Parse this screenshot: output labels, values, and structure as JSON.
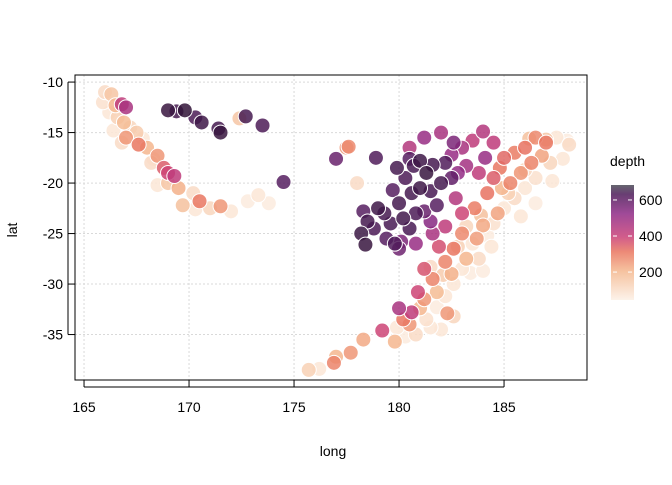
{
  "chart_data": {
    "type": "scatter",
    "title": "",
    "xlabel": "long",
    "ylabel": "lat",
    "xlim": [
      164.57,
      188.95
    ],
    "ylim": [
      -39.5,
      -9.3
    ],
    "xticks": [
      "165",
      "170",
      "175",
      "180",
      "185"
    ],
    "yticks": [
      "-10",
      "-15",
      "-20",
      "-25",
      "-30",
      "-35"
    ],
    "grid": true,
    "legend": {
      "title": "depth",
      "ticks": [
        "200",
        "400",
        "600"
      ],
      "range": [
        45,
        683
      ],
      "placement": "right"
    },
    "colors": [
      "#fcf0e6",
      "#f4b88f",
      "#e9755f",
      "#c93f77",
      "#8f2a86",
      "#4e1c5a",
      "#2a1230"
    ],
    "points": [
      [
        166,
        -11,
        80
      ],
      [
        166.3,
        -11.2,
        120
      ],
      [
        165.9,
        -12,
        70
      ],
      [
        166.5,
        -12.3,
        150
      ],
      [
        166.2,
        -13,
        60
      ],
      [
        166.8,
        -12.2,
        380
      ],
      [
        167,
        -12.5,
        420
      ],
      [
        166.6,
        -13.5,
        100
      ],
      [
        166.9,
        -14,
        140
      ],
      [
        167.2,
        -14.5,
        90
      ],
      [
        166.4,
        -14.8,
        60
      ],
      [
        167,
        -15.5,
        200
      ],
      [
        167.5,
        -15,
        110
      ],
      [
        166.8,
        -16,
        80
      ],
      [
        167.6,
        -16.2,
        250
      ],
      [
        167.8,
        -15.6,
        60
      ],
      [
        168,
        -16.5,
        150
      ],
      [
        168.5,
        -17.3,
        200
      ],
      [
        168.2,
        -18,
        80
      ],
      [
        168.8,
        -18.5,
        300
      ],
      [
        169,
        -19,
        350
      ],
      [
        169.3,
        -19.3,
        380
      ],
      [
        169,
        -20,
        120
      ],
      [
        168.5,
        -20.2,
        60
      ],
      [
        169.5,
        -20.5,
        160
      ],
      [
        170.2,
        -21,
        80
      ],
      [
        170.5,
        -21.8,
        250
      ],
      [
        170.3,
        -22.6,
        60
      ],
      [
        171,
        -22.5,
        90
      ],
      [
        171.5,
        -22.3,
        200
      ],
      [
        172,
        -22.8,
        60
      ],
      [
        172.8,
        -21.8,
        50
      ],
      [
        173.3,
        -21.2,
        60
      ],
      [
        173.8,
        -22,
        50
      ],
      [
        169.7,
        -22.2,
        130
      ],
      [
        168.3,
        -17.6,
        60
      ],
      [
        169,
        -12.8,
        640
      ],
      [
        169.4,
        -12.9,
        600
      ],
      [
        169.8,
        -12.8,
        660
      ],
      [
        170.3,
        -13.5,
        580
      ],
      [
        170.6,
        -14,
        620
      ],
      [
        171.4,
        -14.6,
        600
      ],
      [
        171.5,
        -15,
        640
      ],
      [
        172.4,
        -13.6,
        120
      ],
      [
        172.7,
        -13.4,
        600
      ],
      [
        173.5,
        -14.3,
        580
      ],
      [
        174.5,
        -19.9,
        560
      ],
      [
        177,
        -17.6,
        530
      ],
      [
        177.5,
        -16.5,
        200
      ],
      [
        178.9,
        -17.5,
        570
      ],
      [
        178,
        -20,
        80
      ],
      [
        178.3,
        -22.8,
        560
      ],
      [
        178.5,
        -23.8,
        600
      ],
      [
        178.2,
        -25,
        630
      ],
      [
        178.4,
        -26.1,
        640
      ],
      [
        178.8,
        -24.5,
        580
      ],
      [
        179,
        -22.5,
        620
      ],
      [
        179.3,
        -23,
        600
      ],
      [
        179.6,
        -24,
        590
      ],
      [
        179.4,
        -25.5,
        560
      ],
      [
        179.8,
        -26,
        570
      ],
      [
        180,
        -22,
        600
      ],
      [
        180.2,
        -23.5,
        610
      ],
      [
        180.5,
        -24.5,
        590
      ],
      [
        180.1,
        -25.8,
        500
      ],
      [
        180.8,
        -23,
        580
      ],
      [
        180.6,
        -21,
        600
      ],
      [
        181,
        -20.5,
        620
      ],
      [
        181.3,
        -19,
        640
      ],
      [
        181.6,
        -18.2,
        600
      ],
      [
        181,
        -17.8,
        620
      ],
      [
        180.7,
        -18.3,
        590
      ],
      [
        180.3,
        -19.5,
        580
      ],
      [
        180.5,
        -17.6,
        560
      ],
      [
        181.5,
        -20.8,
        590
      ],
      [
        181.8,
        -22.2,
        560
      ],
      [
        182,
        -20,
        600
      ],
      [
        182.2,
        -18,
        570
      ],
      [
        182.5,
        -19.5,
        540
      ],
      [
        181.2,
        -22.8,
        530
      ],
      [
        179.7,
        -20.7,
        560
      ],
      [
        179.9,
        -18.5,
        600
      ],
      [
        180,
        -26.5,
        520
      ],
      [
        180.8,
        -26,
        450
      ],
      [
        181.6,
        -25,
        420
      ],
      [
        181.5,
        -23.8,
        480
      ],
      [
        181.2,
        -15.5,
        450
      ],
      [
        182,
        -15,
        420
      ],
      [
        182.6,
        -16,
        500
      ],
      [
        182.5,
        -17.2,
        450
      ],
      [
        183,
        -16.5,
        420
      ],
      [
        183.5,
        -15.8,
        380
      ],
      [
        184,
        -14.9,
        400
      ],
      [
        183.2,
        -18.3,
        430
      ],
      [
        184.1,
        -17.5,
        450
      ],
      [
        183.8,
        -19,
        380
      ],
      [
        182.8,
        -19,
        460
      ],
      [
        184.5,
        -16,
        380
      ],
      [
        180.5,
        -16.5,
        400
      ],
      [
        182.7,
        -21.5,
        400
      ],
      [
        183,
        -23,
        350
      ],
      [
        182.2,
        -24.3,
        380
      ],
      [
        181.9,
        -26.3,
        330
      ],
      [
        181.2,
        -28.5,
        320
      ],
      [
        180.9,
        -30.8,
        350
      ],
      [
        180,
        -32.4,
        420
      ],
      [
        180.6,
        -32.8,
        380
      ],
      [
        179.2,
        -34.6,
        350
      ],
      [
        180.2,
        -33.5,
        250
      ],
      [
        184.5,
        -19.5,
        300
      ],
      [
        184.8,
        -18.5,
        250
      ],
      [
        185,
        -17.5,
        280
      ],
      [
        185.5,
        -17,
        240
      ],
      [
        186,
        -16.5,
        260
      ],
      [
        186.5,
        -15.5,
        220
      ],
      [
        185.3,
        -20,
        230
      ],
      [
        184.2,
        -21,
        260
      ],
      [
        183.6,
        -22.5,
        240
      ],
      [
        183,
        -25,
        220
      ],
      [
        182.6,
        -26.5,
        250
      ],
      [
        182.2,
        -27.8,
        230
      ],
      [
        181.6,
        -29.5,
        230
      ],
      [
        181.2,
        -31.5,
        200
      ],
      [
        180.5,
        -34,
        200
      ],
      [
        179.8,
        -35.7,
        150
      ],
      [
        178.3,
        -35.5,
        170
      ],
      [
        177.7,
        -36.8,
        200
      ],
      [
        177,
        -37.2,
        150
      ],
      [
        176.9,
        -37.8,
        230
      ],
      [
        176.2,
        -38.4,
        60
      ],
      [
        175.7,
        -38.5,
        100
      ],
      [
        177.6,
        -16.4,
        220
      ],
      [
        185.8,
        -19,
        200
      ],
      [
        186.3,
        -18,
        230
      ],
      [
        187,
        -16,
        250
      ],
      [
        186.8,
        -17.3,
        180
      ],
      [
        184.7,
        -23,
        180
      ],
      [
        184,
        -24.2,
        170
      ],
      [
        183.7,
        -25.5,
        190
      ],
      [
        183.2,
        -27.5,
        150
      ],
      [
        182.5,
        -29,
        160
      ],
      [
        181.8,
        -30.8,
        140
      ],
      [
        181,
        -32.4,
        150
      ],
      [
        182.3,
        -32.9,
        200
      ],
      [
        180.8,
        -35,
        80
      ],
      [
        187.5,
        -15.5,
        60
      ],
      [
        188,
        -15.8,
        50
      ],
      [
        187.8,
        -17.6,
        60
      ],
      [
        188.1,
        -16.2,
        80
      ],
      [
        187.2,
        -18,
        90
      ],
      [
        186.5,
        -19.5,
        70
      ],
      [
        186,
        -20.5,
        60
      ],
      [
        185.5,
        -21.5,
        80
      ],
      [
        185,
        -22.5,
        60
      ],
      [
        184.5,
        -24,
        70
      ],
      [
        184.2,
        -25.2,
        50
      ],
      [
        183.5,
        -26,
        60
      ],
      [
        183.8,
        -27.5,
        80
      ],
      [
        183,
        -28.5,
        60
      ],
      [
        182.6,
        -30,
        60
      ],
      [
        182.2,
        -31.2,
        60
      ],
      [
        181.8,
        -32.3,
        50
      ],
      [
        181.3,
        -33.5,
        70
      ],
      [
        180.3,
        -35.2,
        50
      ],
      [
        179.9,
        -34.3,
        60
      ],
      [
        182,
        -34.5,
        60
      ],
      [
        182.6,
        -33.2,
        90
      ],
      [
        185.2,
        -21,
        100
      ],
      [
        186,
        -18.7,
        90
      ],
      [
        187,
        -15.7,
        120
      ],
      [
        186.2,
        -15.6,
        130
      ],
      [
        183.2,
        -24.3,
        90
      ],
      [
        182.8,
        -26.3,
        100
      ],
      [
        184.4,
        -26.3,
        60
      ],
      [
        183.4,
        -28.9,
        50
      ],
      [
        181.5,
        -28.3,
        80
      ],
      [
        182.1,
        -29.1,
        110
      ],
      [
        183.9,
        -23.2,
        130
      ],
      [
        184.9,
        -20.5,
        150
      ],
      [
        185.8,
        -23.3,
        60
      ],
      [
        186.5,
        -22,
        50
      ],
      [
        187.3,
        -19.8,
        60
      ],
      [
        184,
        -28.7,
        50
      ],
      [
        181.5,
        -34.3,
        60
      ]
    ]
  }
}
